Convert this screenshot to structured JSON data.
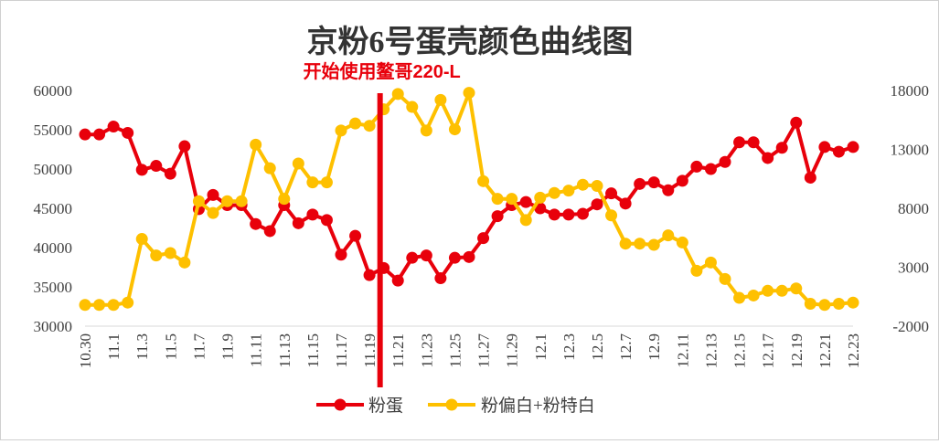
{
  "chart_data": {
    "type": "line",
    "title": "京粉6号蛋壳颜色曲线图",
    "annotation": "开始使用鳌哥220-L",
    "annotation_at": "11.20",
    "x": [
      "10.30",
      "10.31",
      "11.1",
      "11.2",
      "11.3",
      "11.4",
      "11.5",
      "11.6",
      "11.7",
      "11.8",
      "11.9",
      "11.10",
      "11.11",
      "11.12",
      "11.13",
      "11.14",
      "11.15",
      "11.16",
      "11.17",
      "11.18",
      "11.19",
      "11.20",
      "11.21",
      "11.22",
      "11.23",
      "11.24",
      "11.25",
      "11.26",
      "11.27",
      "11.28",
      "11.29",
      "11.30",
      "12.1",
      "12.2",
      "12.3",
      "12.4",
      "12.5",
      "12.6",
      "12.7",
      "12.8",
      "12.9",
      "12.10",
      "12.11",
      "12.12",
      "12.13",
      "12.14",
      "12.15",
      "12.16",
      "12.17",
      "12.18",
      "12.19",
      "12.20",
      "12.21",
      "12.22",
      "12.23"
    ],
    "x_tick_labels": [
      "10.30",
      "11.1",
      "11.3",
      "11.5",
      "11.7",
      "11.9",
      "11.11",
      "11.13",
      "11.15",
      "11.17",
      "11.19",
      "11.21",
      "11.23",
      "11.25",
      "11.27",
      "11.29",
      "12.1",
      "12.3",
      "12.5",
      "12.7",
      "12.9",
      "12.11",
      "12.13",
      "12.15",
      "12.17",
      "12.19",
      "12.21",
      "12.23"
    ],
    "left_axis": {
      "ylim": [
        30000,
        60000
      ],
      "ticks": [
        "60000",
        "55000",
        "50000",
        "45000",
        "40000",
        "35000",
        "30000"
      ]
    },
    "right_axis": {
      "ylim": [
        -2000,
        18000
      ],
      "ticks": [
        "18000",
        "13000",
        "8000",
        "3000",
        "-2000"
      ]
    },
    "legend_position": "bottom",
    "series": [
      {
        "name": "粉蛋",
        "axis": "left",
        "color": "#e8000b",
        "values": [
          54400,
          54400,
          55400,
          54600,
          49900,
          50400,
          49400,
          52900,
          44900,
          46700,
          45400,
          45400,
          43000,
          42100,
          45400,
          43100,
          44200,
          43500,
          39100,
          41500,
          36500,
          37400,
          35800,
          38700,
          39000,
          36100,
          38700,
          38800,
          41200,
          44000,
          45400,
          45800,
          45000,
          44200,
          44200,
          44300,
          45500,
          46900,
          45600,
          48100,
          48300,
          47300,
          48500,
          50300,
          50000,
          50900,
          53400,
          53400,
          51400,
          52700,
          55900,
          48900,
          52800,
          52200,
          52800
        ]
      },
      {
        "name": "粉偏白+粉特白",
        "axis": "right",
        "color": "#fec000",
        "values": [
          -200,
          -200,
          -200,
          0,
          5400,
          4000,
          4200,
          3400,
          8600,
          7600,
          8600,
          8600,
          13400,
          11400,
          8800,
          11800,
          10200,
          10200,
          14600,
          15200,
          15000,
          16400,
          17700,
          16600,
          14600,
          17200,
          14700,
          17800,
          10300,
          8800,
          8800,
          7000,
          8900,
          9300,
          9500,
          10000,
          9900,
          7400,
          5000,
          5000,
          4900,
          5700,
          5100,
          2700,
          3400,
          2000,
          400,
          600,
          1000,
          1000,
          1200,
          -100,
          -200,
          -100,
          0
        ]
      }
    ]
  }
}
